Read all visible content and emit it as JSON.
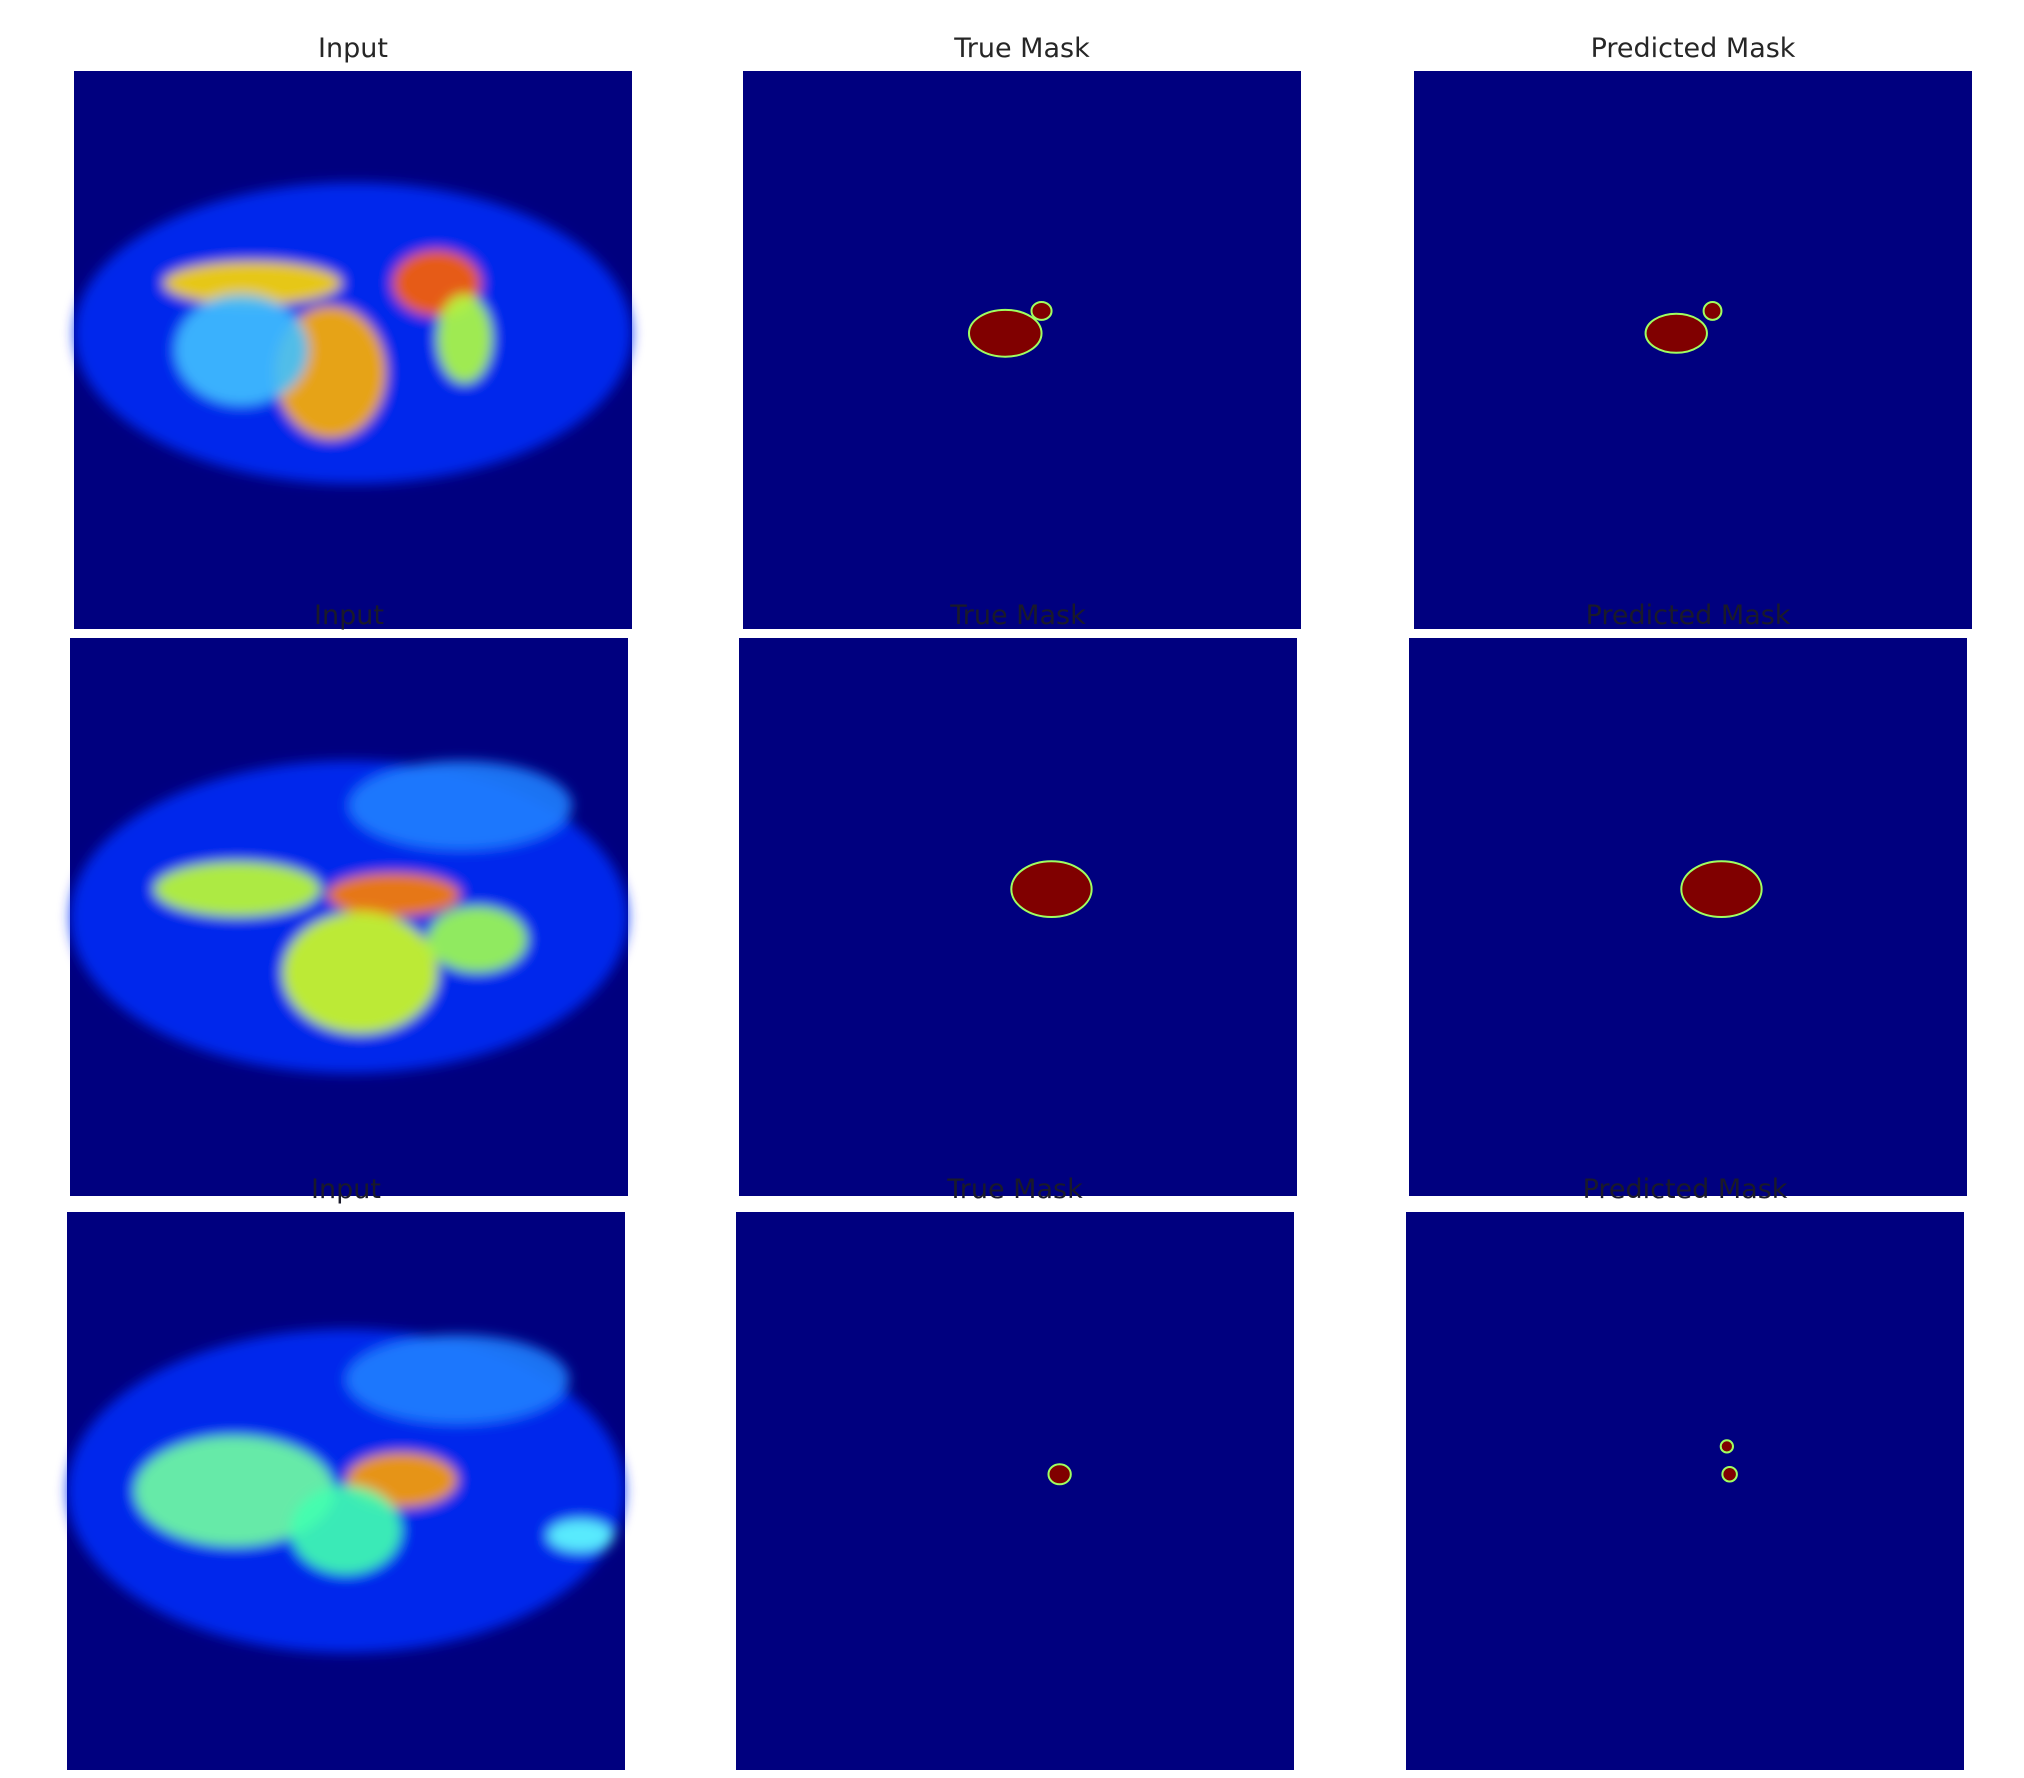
{
  "rows": [
    [
      "Input",
      "True Mask",
      "Predicted Mask"
    ],
    [
      "Input",
      "True Mask",
      "Predicted Mask"
    ],
    [
      "Input",
      "True Mask",
      "Predicted Mask"
    ]
  ]
}
